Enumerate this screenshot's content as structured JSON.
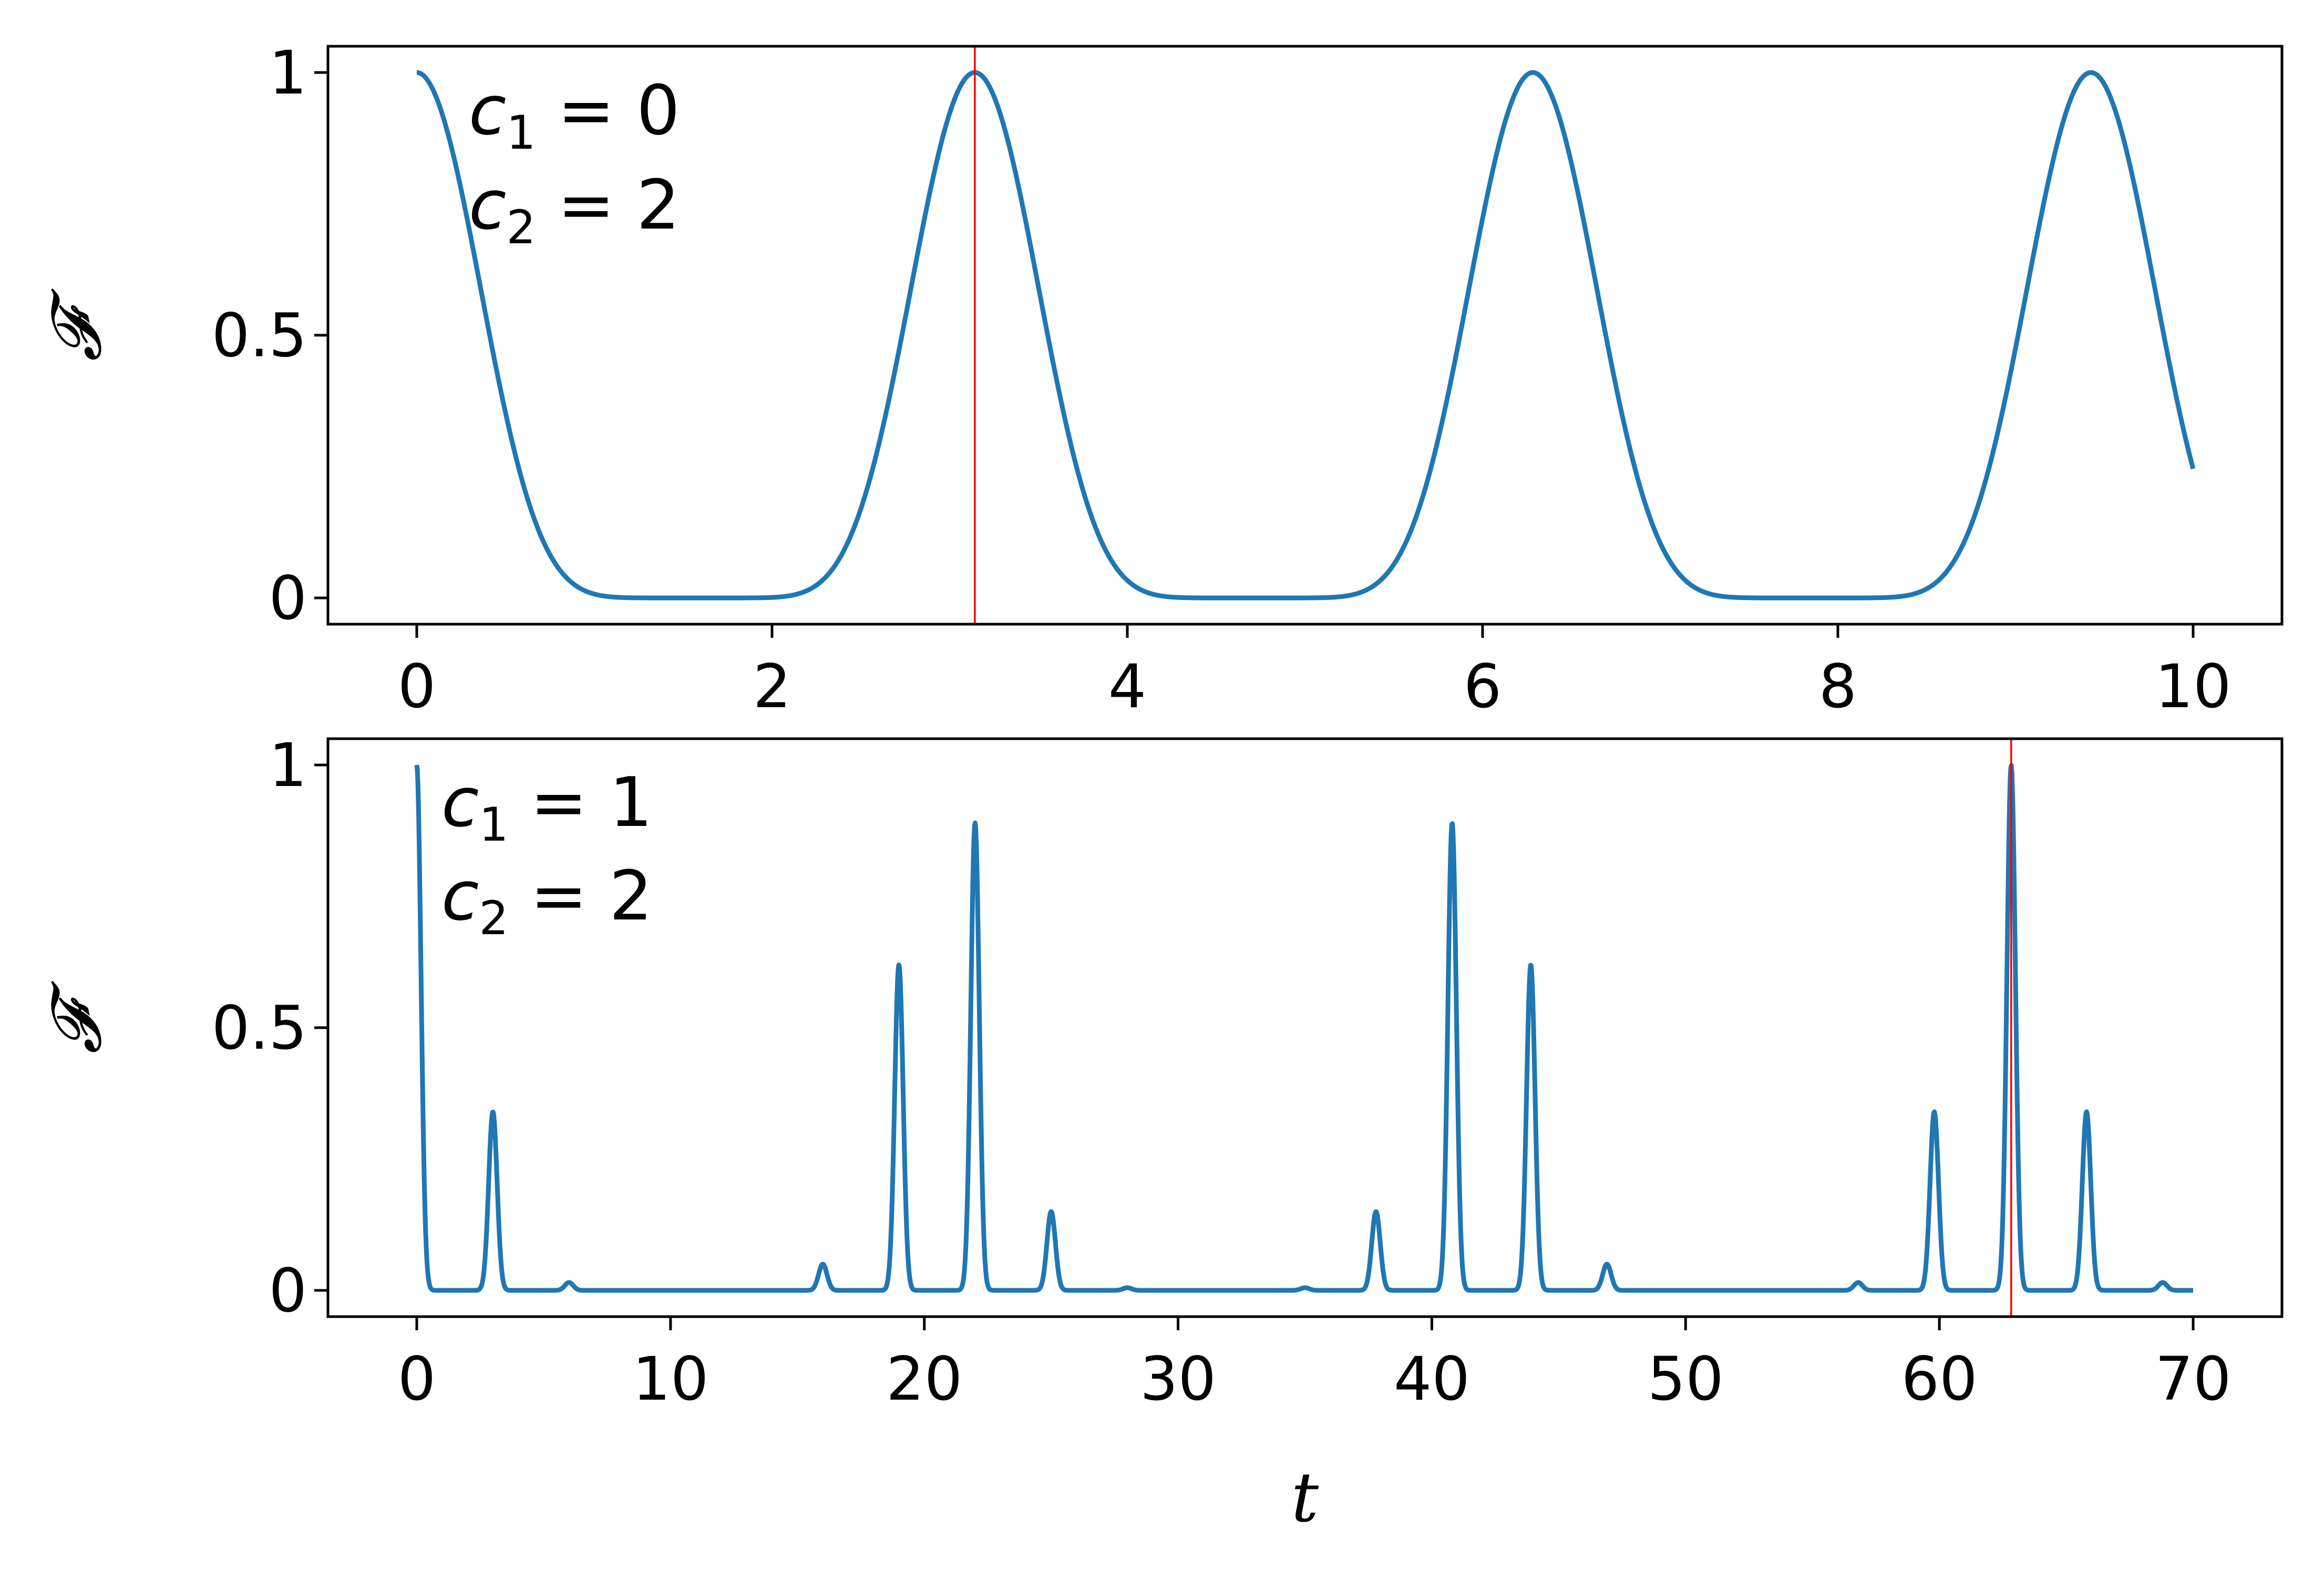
{
  "chart_data": [
    {
      "type": "line",
      "panel": "top",
      "ylabel": "𝓕",
      "xlabel": "",
      "xlim": [
        -0.5,
        10.5
      ],
      "ylim": [
        -0.05,
        1.05
      ],
      "xticks": [
        "0",
        "2",
        "4",
        "6",
        "8",
        "10"
      ],
      "yticks": [
        "0",
        "0.5",
        "1"
      ],
      "xtick_values": [
        0,
        2,
        4,
        6,
        8,
        10
      ],
      "ytick_values": [
        0,
        0.5,
        1
      ],
      "annotations": [
        {
          "var": "c",
          "sub": "1",
          "rest": " = 0"
        },
        {
          "var": "c",
          "sub": "2",
          "rest": " = 2"
        }
      ],
      "vline": {
        "x": 3.1416,
        "color": "#ff0000"
      },
      "series": [
        {
          "color": "#1f77b4",
          "model": "cos8",
          "params": {
            "omega": 1.0
          },
          "x_range": [
            0,
            10
          ]
        }
      ],
      "grid": false,
      "legend": "none"
    },
    {
      "type": "line",
      "panel": "bottom",
      "ylabel": "𝓕",
      "xlabel": "t",
      "xlim": [
        -3.5,
        73.5
      ],
      "ylim": [
        -0.05,
        1.05
      ],
      "xticks": [
        "0",
        "10",
        "20",
        "30",
        "40",
        "50",
        "60",
        "70"
      ],
      "yticks": [
        "0",
        "0.5",
        "1"
      ],
      "xtick_values": [
        0,
        10,
        20,
        30,
        40,
        50,
        60,
        70
      ],
      "ytick_values": [
        0,
        0.5,
        1
      ],
      "annotations": [
        {
          "var": "c",
          "sub": "1",
          "rest": " = 1"
        },
        {
          "var": "c",
          "sub": "2",
          "rest": " = 2"
        }
      ],
      "vline": {
        "x": 62.83,
        "color": "#ff0000"
      },
      "series": [
        {
          "color": "#1f77b4",
          "model": "pulse_train",
          "x_range": [
            0,
            70
          ],
          "baseline": 0.0,
          "pulses": [
            {
              "t": 0.0,
              "h": 1.0,
              "w": 0.35
            },
            {
              "t": 3.0,
              "h": 0.34,
              "w": 0.35
            },
            {
              "t": 6.0,
              "h": 0.015,
              "w": 0.35
            },
            {
              "t": 16.0,
              "h": 0.05,
              "w": 0.35
            },
            {
              "t": 19.0,
              "h": 0.62,
              "w": 0.35
            },
            {
              "t": 22.0,
              "h": 0.89,
              "w": 0.35
            },
            {
              "t": 25.0,
              "h": 0.15,
              "w": 0.35
            },
            {
              "t": 28.0,
              "h": 0.005,
              "w": 0.35
            },
            {
              "t": 35.0,
              "h": 0.005,
              "w": 0.35
            },
            {
              "t": 37.8,
              "h": 0.15,
              "w": 0.35
            },
            {
              "t": 40.8,
              "h": 0.89,
              "w": 0.35
            },
            {
              "t": 43.9,
              "h": 0.62,
              "w": 0.35
            },
            {
              "t": 46.9,
              "h": 0.05,
              "w": 0.35
            },
            {
              "t": 56.8,
              "h": 0.015,
              "w": 0.35
            },
            {
              "t": 59.8,
              "h": 0.34,
              "w": 0.35
            },
            {
              "t": 62.83,
              "h": 1.0,
              "w": 0.35
            },
            {
              "t": 65.8,
              "h": 0.34,
              "w": 0.35
            },
            {
              "t": 68.8,
              "h": 0.015,
              "w": 0.35
            }
          ]
        }
      ],
      "grid": false,
      "legend": "none"
    }
  ]
}
